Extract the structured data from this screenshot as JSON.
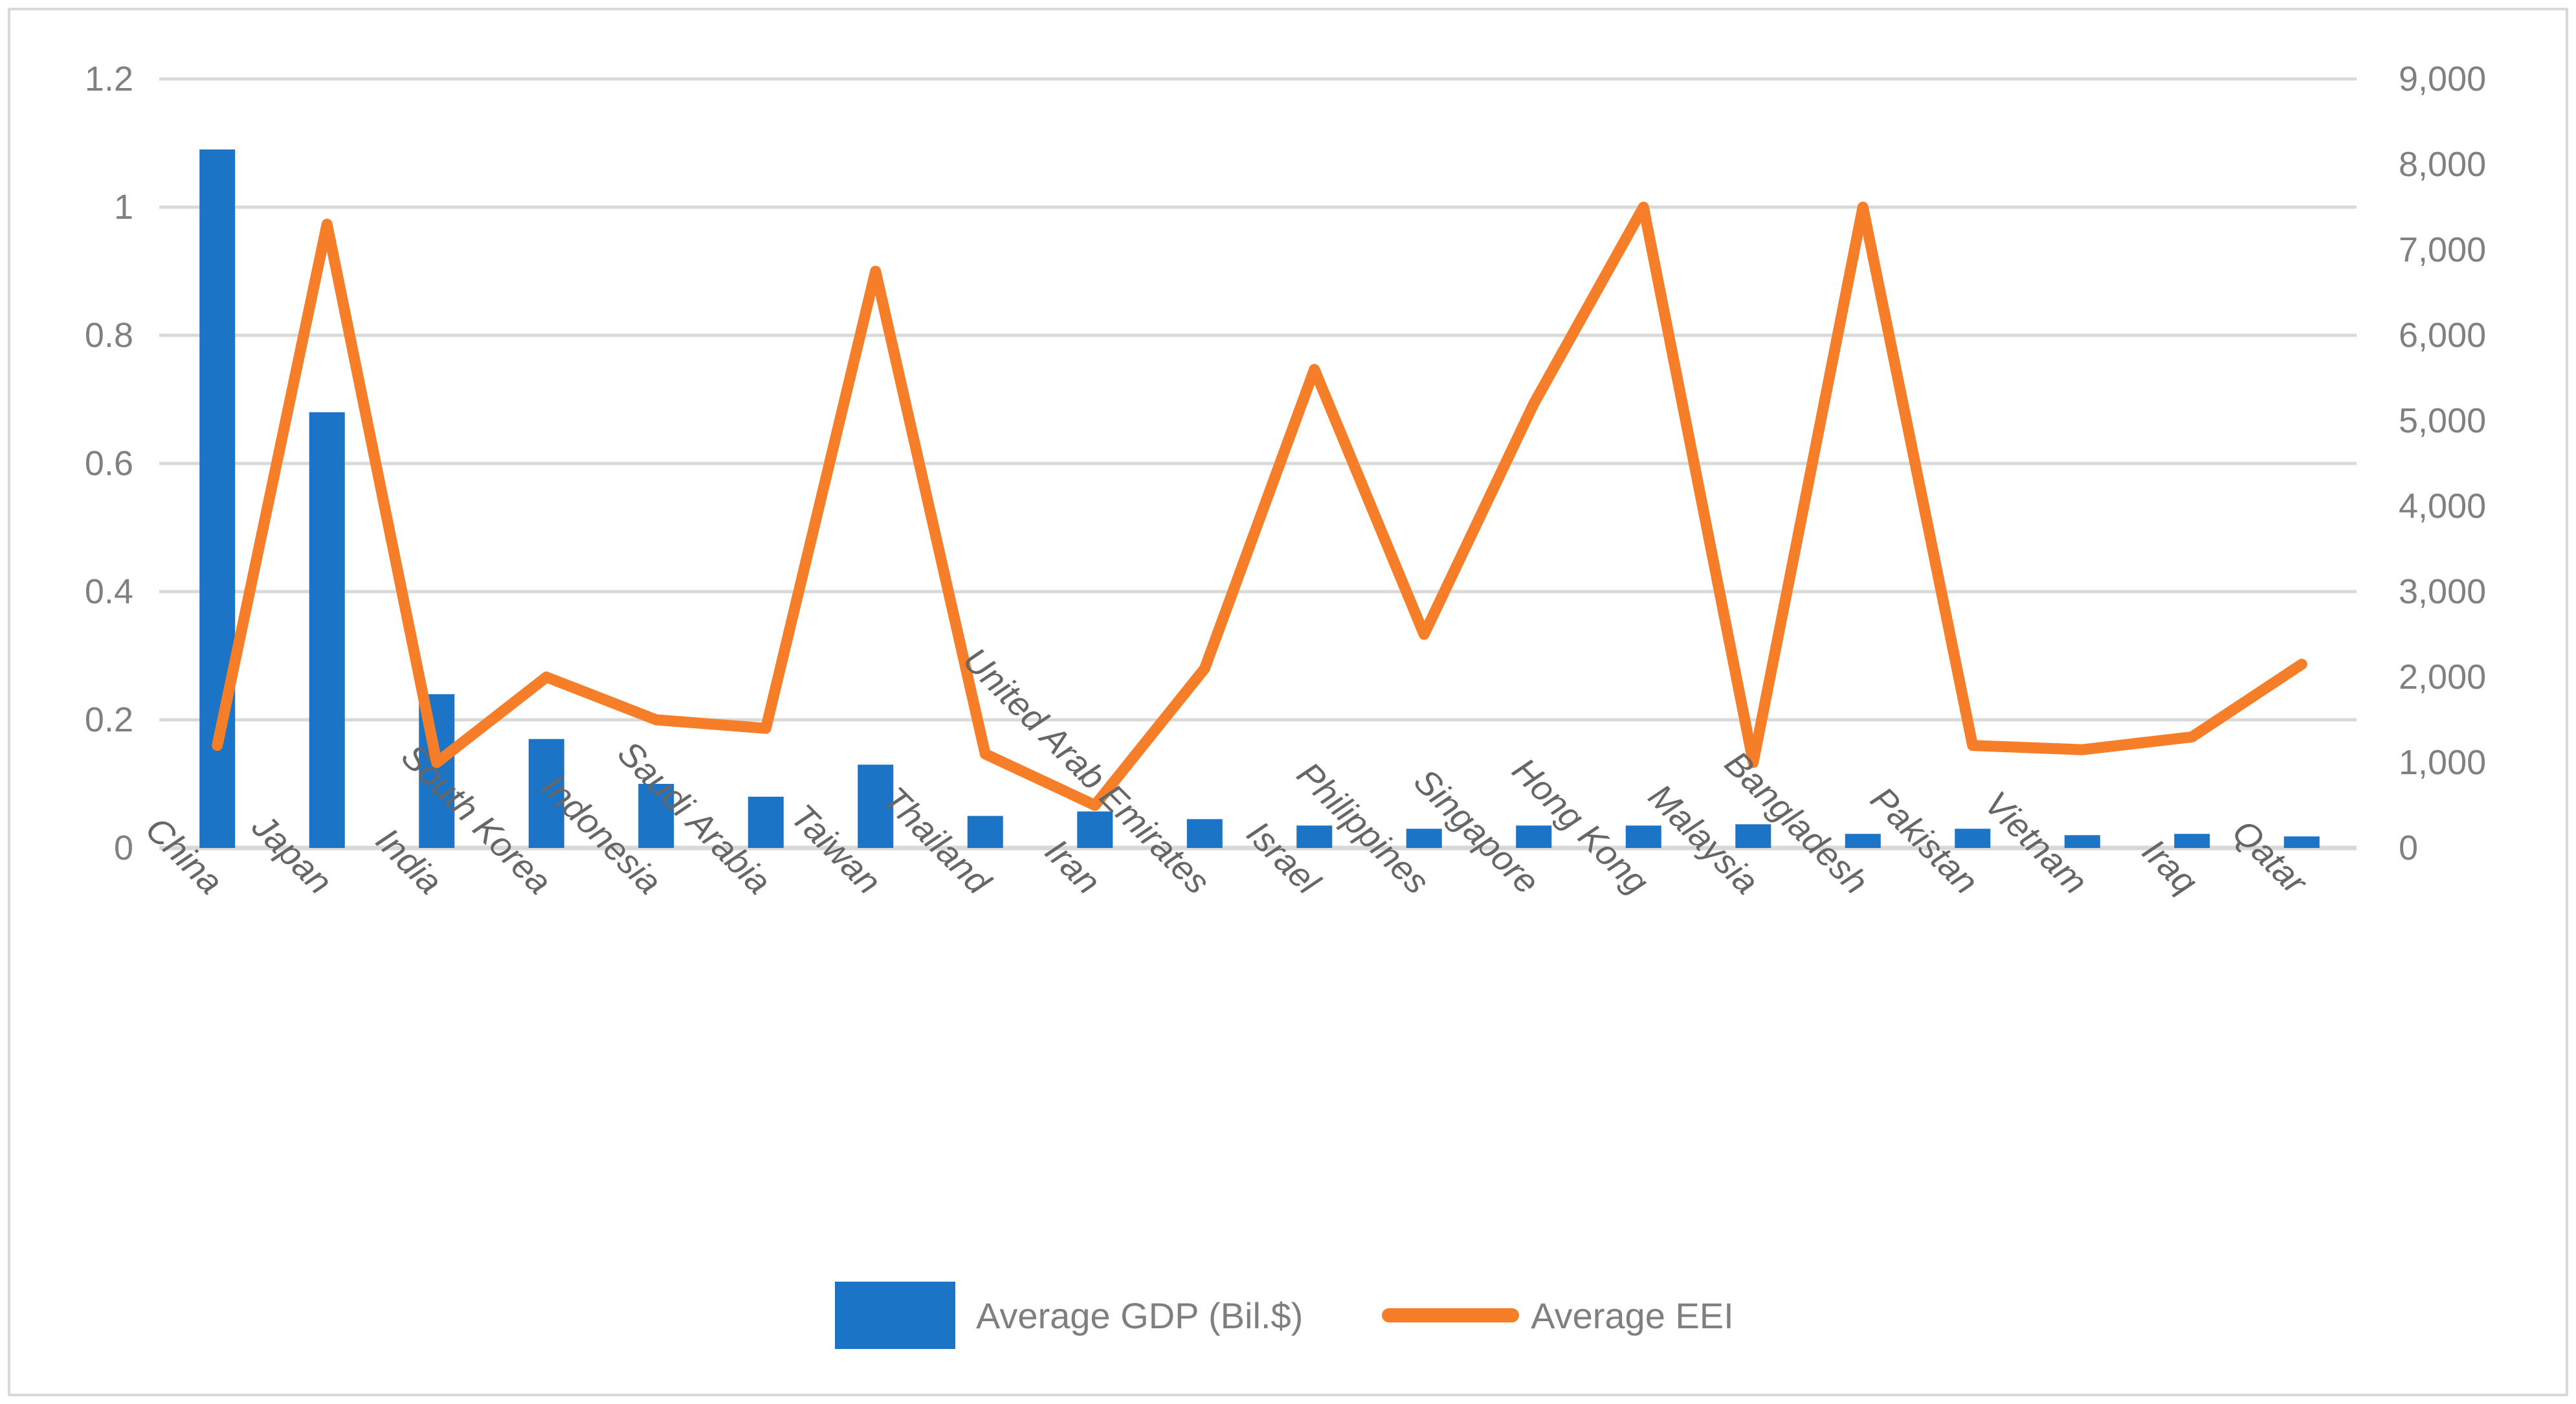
{
  "chart_data": {
    "type": "bar",
    "subtype": "combo-bar-line-dual-axis",
    "title": "",
    "categories": [
      "China",
      "Japan",
      "India",
      "South Korea",
      "Indonesia",
      "Saudi Arabia",
      "Taiwan",
      "Thailand",
      "Iran",
      "United Arab Emirates",
      "Israel",
      "Philippines",
      "Singapore",
      "Hong Kong",
      "Malaysia",
      "Bangladesh",
      "Pakistan",
      "Vietnam",
      "Iraq",
      "Qatar"
    ],
    "series": [
      {
        "name": "Average GDP (Bil.$)",
        "type": "bar",
        "axis": "left",
        "color": "#1B74C5",
        "values": [
          1.09,
          0.68,
          0.24,
          0.17,
          0.1,
          0.08,
          0.13,
          0.05,
          0.057,
          0.045,
          0.035,
          0.03,
          0.035,
          0.035,
          0.037,
          0.022,
          0.03,
          0.02,
          0.022,
          0.018
        ]
      },
      {
        "name": "Average EEI",
        "type": "line",
        "axis": "right",
        "color": "#F67E28",
        "values": [
          1200,
          7300,
          1000,
          2000,
          1500,
          1400,
          6750,
          1100,
          500,
          2100,
          5600,
          2500,
          5200,
          7500,
          1000,
          7500,
          1200,
          1150,
          1300,
          2150
        ]
      }
    ],
    "left_axis": {
      "min": 0,
      "max": 1.2,
      "step": 0.2,
      "tick_labels": [
        "0",
        "0.2",
        "0.4",
        "0.6",
        "0.8",
        "1",
        "1.2"
      ]
    },
    "right_axis": {
      "min": 0,
      "max": 9000,
      "step": 1000,
      "tick_labels": [
        "0",
        "1,000",
        "2,000",
        "3,000",
        "4,000",
        "5,000",
        "6,000",
        "7,000",
        "8,000",
        "9,000"
      ]
    },
    "xlabel": "",
    "ylabel": "",
    "grid": true,
    "legend_position": "bottom",
    "colors": {
      "gridline": "#D9D9D9",
      "zero_line": "#D9D9D9",
      "axis_text": "#808080",
      "x_text": "#666666",
      "border": "#D9D9D9",
      "background": "#FFFFFF"
    }
  },
  "legend": {
    "gdp_label": "Average GDP (Bil.$)",
    "eei_label": "Average EEI"
  }
}
